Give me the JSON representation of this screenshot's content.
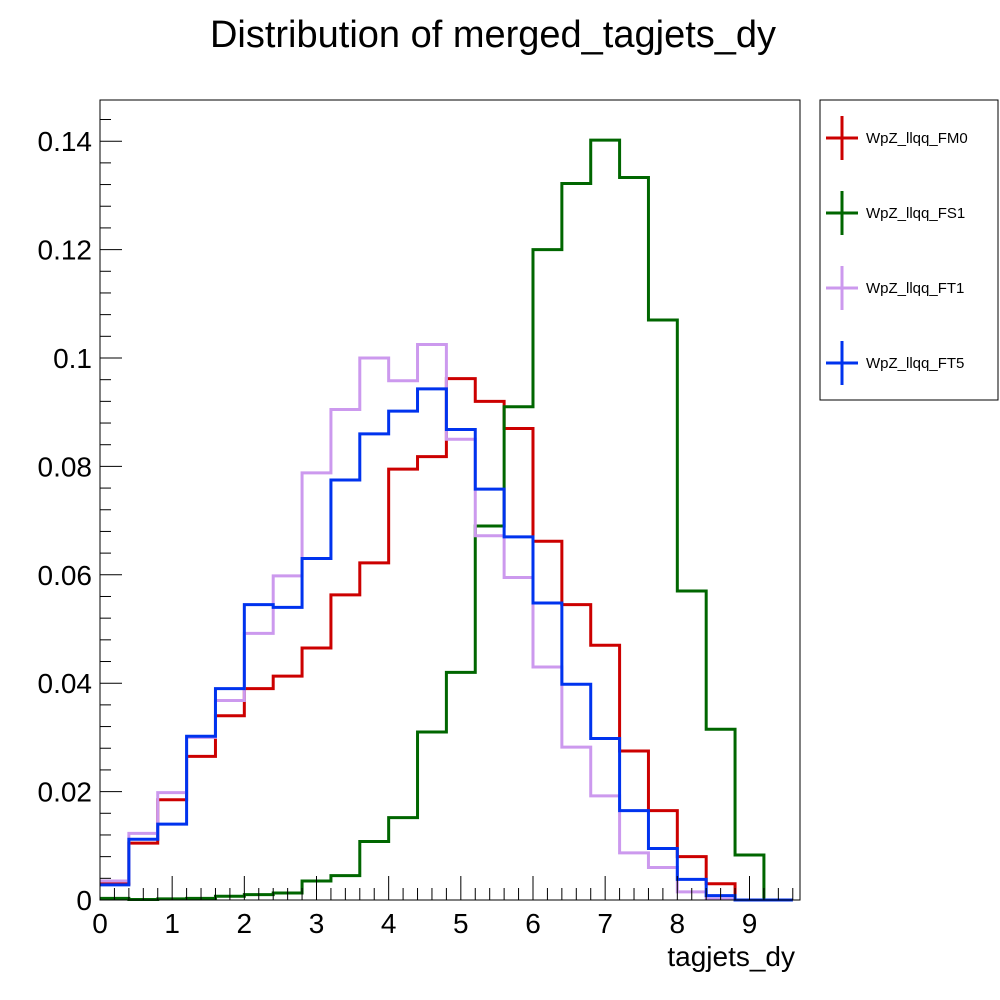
{
  "chart_data": {
    "type": "line",
    "title": "Distribution of merged_tagjets_dy",
    "xlabel": "tagjets_dy",
    "ylabel": "",
    "xlim": [
      0,
      9.7
    ],
    "ylim": [
      0,
      0.1476
    ],
    "bin_width": 0.4,
    "x_ticks": [
      "0",
      "1",
      "2",
      "3",
      "4",
      "5",
      "6",
      "7",
      "8",
      "9"
    ],
    "y_ticks": [
      "0",
      "0.02",
      "0.04",
      "0.06",
      "0.08",
      "0.1",
      "0.12",
      "0.14"
    ],
    "legend_position": "right-top",
    "grid": false,
    "series": [
      {
        "name": "WpZ_llqq_FM0",
        "color": "#cc0000",
        "values": [
          0.003,
          0.0105,
          0.0185,
          0.0265,
          0.034,
          0.039,
          0.0413,
          0.0465,
          0.0563,
          0.0622,
          0.0795,
          0.0818,
          0.0962,
          0.092,
          0.087,
          0.0662,
          0.0545,
          0.047,
          0.0275,
          0.0165,
          0.008,
          0.003,
          0.0,
          0.0
        ]
      },
      {
        "name": "WpZ_llqq_FS1",
        "color": "#006600",
        "values": [
          0.0003,
          0.0001,
          0.0002,
          0.0003,
          0.0007,
          0.001,
          0.0013,
          0.0035,
          0.0045,
          0.0108,
          0.0152,
          0.031,
          0.042,
          0.069,
          0.091,
          0.12,
          0.1322,
          0.1402,
          0.1333,
          0.107,
          0.057,
          0.0315,
          0.0083,
          0.0
        ]
      },
      {
        "name": "WpZ_llqq_FT1",
        "color": "#cc99ee",
        "values": [
          0.0035,
          0.0123,
          0.0198,
          0.03,
          0.0368,
          0.0492,
          0.0598,
          0.0788,
          0.0905,
          0.1,
          0.0958,
          0.1025,
          0.085,
          0.0672,
          0.0595,
          0.043,
          0.0282,
          0.0192,
          0.0087,
          0.006,
          0.0015,
          0.0002,
          0.0,
          0.0
        ]
      },
      {
        "name": "WpZ_llqq_FT5",
        "color": "#0033ee",
        "values": [
          0.0028,
          0.0112,
          0.014,
          0.0302,
          0.039,
          0.0545,
          0.054,
          0.063,
          0.0775,
          0.086,
          0.0902,
          0.0943,
          0.0868,
          0.0758,
          0.067,
          0.0548,
          0.0398,
          0.0298,
          0.0165,
          0.0095,
          0.0038,
          0.0008,
          0.0,
          0.0
        ]
      }
    ]
  }
}
